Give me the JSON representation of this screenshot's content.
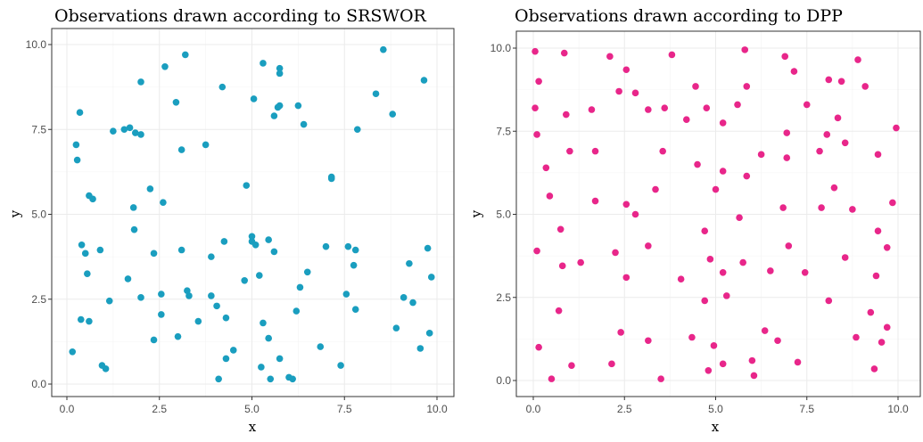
{
  "chart_data": [
    {
      "type": "scatter",
      "title": "Observations drawn according to SRSWOR",
      "xlabel": "x",
      "ylabel": "y",
      "xlim": [
        0,
        10
      ],
      "ylim": [
        0,
        10
      ],
      "xticks": [
        "0.0",
        "2.5",
        "5.0",
        "7.5",
        "10.0"
      ],
      "yticks": [
        "0.0",
        "2.5",
        "5.0",
        "7.5",
        "10.0"
      ],
      "grid": true,
      "color": "#1a9ebf",
      "points": [
        [
          0.15,
          0.95
        ],
        [
          0.25,
          7.05
        ],
        [
          0.28,
          6.6
        ],
        [
          0.35,
          8.0
        ],
        [
          0.38,
          1.9
        ],
        [
          0.4,
          4.1
        ],
        [
          0.5,
          3.85
        ],
        [
          0.55,
          3.25
        ],
        [
          0.6,
          1.85
        ],
        [
          0.6,
          5.55
        ],
        [
          0.7,
          5.45
        ],
        [
          0.9,
          3.95
        ],
        [
          0.95,
          0.55
        ],
        [
          1.05,
          0.45
        ],
        [
          1.15,
          2.45
        ],
        [
          1.25,
          7.45
        ],
        [
          1.55,
          7.5
        ],
        [
          1.65,
          3.1
        ],
        [
          1.7,
          7.55
        ],
        [
          1.8,
          5.2
        ],
        [
          1.82,
          4.55
        ],
        [
          1.85,
          7.4
        ],
        [
          2.0,
          7.35
        ],
        [
          2.0,
          2.55
        ],
        [
          2.0,
          8.9
        ],
        [
          2.25,
          5.75
        ],
        [
          2.35,
          3.85
        ],
        [
          2.35,
          1.3
        ],
        [
          2.55,
          2.65
        ],
        [
          2.55,
          2.05
        ],
        [
          2.6,
          5.35
        ],
        [
          2.65,
          9.35
        ],
        [
          2.95,
          8.3
        ],
        [
          3.0,
          1.4
        ],
        [
          3.1,
          3.95
        ],
        [
          3.1,
          6.9
        ],
        [
          3.2,
          9.7
        ],
        [
          3.25,
          2.75
        ],
        [
          3.3,
          2.6
        ],
        [
          3.55,
          1.85
        ],
        [
          3.75,
          7.05
        ],
        [
          3.9,
          3.75
        ],
        [
          3.9,
          2.6
        ],
        [
          4.05,
          2.3
        ],
        [
          4.1,
          0.15
        ],
        [
          4.2,
          8.75
        ],
        [
          4.25,
          4.2
        ],
        [
          4.3,
          1.95
        ],
        [
          4.3,
          0.75
        ],
        [
          4.5,
          1.0
        ],
        [
          4.8,
          3.05
        ],
        [
          4.85,
          5.85
        ],
        [
          5.0,
          4.35
        ],
        [
          5.0,
          4.2
        ],
        [
          5.05,
          8.4
        ],
        [
          5.1,
          4.1
        ],
        [
          5.2,
          3.2
        ],
        [
          5.25,
          0.5
        ],
        [
          5.3,
          9.45
        ],
        [
          5.3,
          1.8
        ],
        [
          5.45,
          4.25
        ],
        [
          5.45,
          1.35
        ],
        [
          5.5,
          0.15
        ],
        [
          5.6,
          3.9
        ],
        [
          5.6,
          7.9
        ],
        [
          5.7,
          8.15
        ],
        [
          5.75,
          9.3
        ],
        [
          5.75,
          9.15
        ],
        [
          5.75,
          8.2
        ],
        [
          5.75,
          0.75
        ],
        [
          6.0,
          0.2
        ],
        [
          6.1,
          0.15
        ],
        [
          6.2,
          2.15
        ],
        [
          6.25,
          8.2
        ],
        [
          6.3,
          2.85
        ],
        [
          6.4,
          7.65
        ],
        [
          6.5,
          3.3
        ],
        [
          6.85,
          1.1
        ],
        [
          7.0,
          4.05
        ],
        [
          7.15,
          6.05
        ],
        [
          7.15,
          6.1
        ],
        [
          7.4,
          0.55
        ],
        [
          7.55,
          2.65
        ],
        [
          7.6,
          4.05
        ],
        [
          7.75,
          3.5
        ],
        [
          7.8,
          2.2
        ],
        [
          7.8,
          3.95
        ],
        [
          7.85,
          7.5
        ],
        [
          8.35,
          8.55
        ],
        [
          8.55,
          9.85
        ],
        [
          8.8,
          7.95
        ],
        [
          8.9,
          1.65
        ],
        [
          9.1,
          2.55
        ],
        [
          9.25,
          3.55
        ],
        [
          9.35,
          2.4
        ],
        [
          9.55,
          1.05
        ],
        [
          9.65,
          8.95
        ],
        [
          9.75,
          4.0
        ],
        [
          9.8,
          1.5
        ],
        [
          9.85,
          3.15
        ]
      ]
    },
    {
      "type": "scatter",
      "title": "Observations drawn according to DPP",
      "xlabel": "x",
      "ylabel": "y",
      "xlim": [
        0,
        10
      ],
      "ylim": [
        0,
        10
      ],
      "xticks": [
        "0.0",
        "2.5",
        "5.0",
        "7.5",
        "10.0"
      ],
      "yticks": [
        "0.0",
        "2.5",
        "5.0",
        "7.5",
        "10.0"
      ],
      "grid": true,
      "color": "#e8268a",
      "points": [
        [
          0.05,
          9.9
        ],
        [
          0.05,
          8.2
        ],
        [
          0.1,
          7.4
        ],
        [
          0.1,
          3.9
        ],
        [
          0.15,
          9.0
        ],
        [
          0.15,
          1.0
        ],
        [
          0.35,
          6.4
        ],
        [
          0.45,
          5.55
        ],
        [
          0.5,
          0.05
        ],
        [
          0.7,
          2.1
        ],
        [
          0.75,
          4.55
        ],
        [
          0.8,
          3.45
        ],
        [
          0.85,
          9.85
        ],
        [
          0.9,
          8.0
        ],
        [
          1.0,
          6.9
        ],
        [
          1.05,
          0.45
        ],
        [
          1.3,
          3.55
        ],
        [
          1.6,
          8.15
        ],
        [
          1.7,
          5.4
        ],
        [
          1.7,
          6.9
        ],
        [
          2.1,
          9.75
        ],
        [
          2.15,
          0.5
        ],
        [
          2.25,
          3.85
        ],
        [
          2.35,
          8.7
        ],
        [
          2.4,
          1.45
        ],
        [
          2.55,
          9.35
        ],
        [
          2.55,
          5.3
        ],
        [
          2.55,
          3.1
        ],
        [
          2.8,
          8.65
        ],
        [
          2.8,
          5.0
        ],
        [
          3.15,
          8.15
        ],
        [
          3.15,
          4.05
        ],
        [
          3.15,
          1.2
        ],
        [
          3.35,
          5.75
        ],
        [
          3.5,
          0.05
        ],
        [
          3.55,
          6.9
        ],
        [
          3.6,
          8.2
        ],
        [
          3.8,
          9.8
        ],
        [
          4.05,
          3.05
        ],
        [
          4.2,
          7.85
        ],
        [
          4.35,
          1.3
        ],
        [
          4.45,
          8.85
        ],
        [
          4.5,
          6.5
        ],
        [
          4.7,
          4.5
        ],
        [
          4.7,
          2.4
        ],
        [
          4.75,
          8.2
        ],
        [
          4.8,
          0.3
        ],
        [
          4.85,
          3.65
        ],
        [
          4.95,
          1.05
        ],
        [
          5.0,
          5.75
        ],
        [
          5.2,
          7.75
        ],
        [
          5.2,
          6.3
        ],
        [
          5.2,
          3.25
        ],
        [
          5.2,
          0.5
        ],
        [
          5.3,
          2.55
        ],
        [
          5.6,
          8.3
        ],
        [
          5.65,
          4.9
        ],
        [
          5.75,
          3.55
        ],
        [
          5.8,
          9.95
        ],
        [
          5.85,
          8.85
        ],
        [
          5.85,
          6.15
        ],
        [
          6.0,
          0.6
        ],
        [
          6.05,
          0.15
        ],
        [
          6.25,
          6.8
        ],
        [
          6.35,
          1.5
        ],
        [
          6.5,
          3.3
        ],
        [
          6.7,
          1.2
        ],
        [
          6.85,
          5.2
        ],
        [
          6.9,
          9.75
        ],
        [
          6.95,
          7.45
        ],
        [
          6.95,
          6.7
        ],
        [
          7.0,
          4.05
        ],
        [
          7.15,
          9.3
        ],
        [
          7.25,
          0.55
        ],
        [
          7.45,
          3.25
        ],
        [
          7.5,
          8.3
        ],
        [
          7.85,
          6.9
        ],
        [
          7.9,
          5.2
        ],
        [
          8.05,
          7.4
        ],
        [
          8.1,
          2.4
        ],
        [
          8.1,
          9.05
        ],
        [
          8.25,
          5.8
        ],
        [
          8.35,
          7.9
        ],
        [
          8.45,
          9.0
        ],
        [
          8.55,
          3.7
        ],
        [
          8.55,
          7.15
        ],
        [
          8.75,
          5.15
        ],
        [
          8.85,
          1.3
        ],
        [
          8.9,
          9.65
        ],
        [
          9.1,
          8.85
        ],
        [
          9.25,
          2.05
        ],
        [
          9.35,
          0.35
        ],
        [
          9.4,
          3.15
        ],
        [
          9.45,
          6.8
        ],
        [
          9.45,
          4.5
        ],
        [
          9.55,
          1.15
        ],
        [
          9.7,
          4.0
        ],
        [
          9.7,
          1.6
        ],
        [
          9.85,
          5.35
        ],
        [
          9.95,
          7.6
        ]
      ]
    }
  ]
}
